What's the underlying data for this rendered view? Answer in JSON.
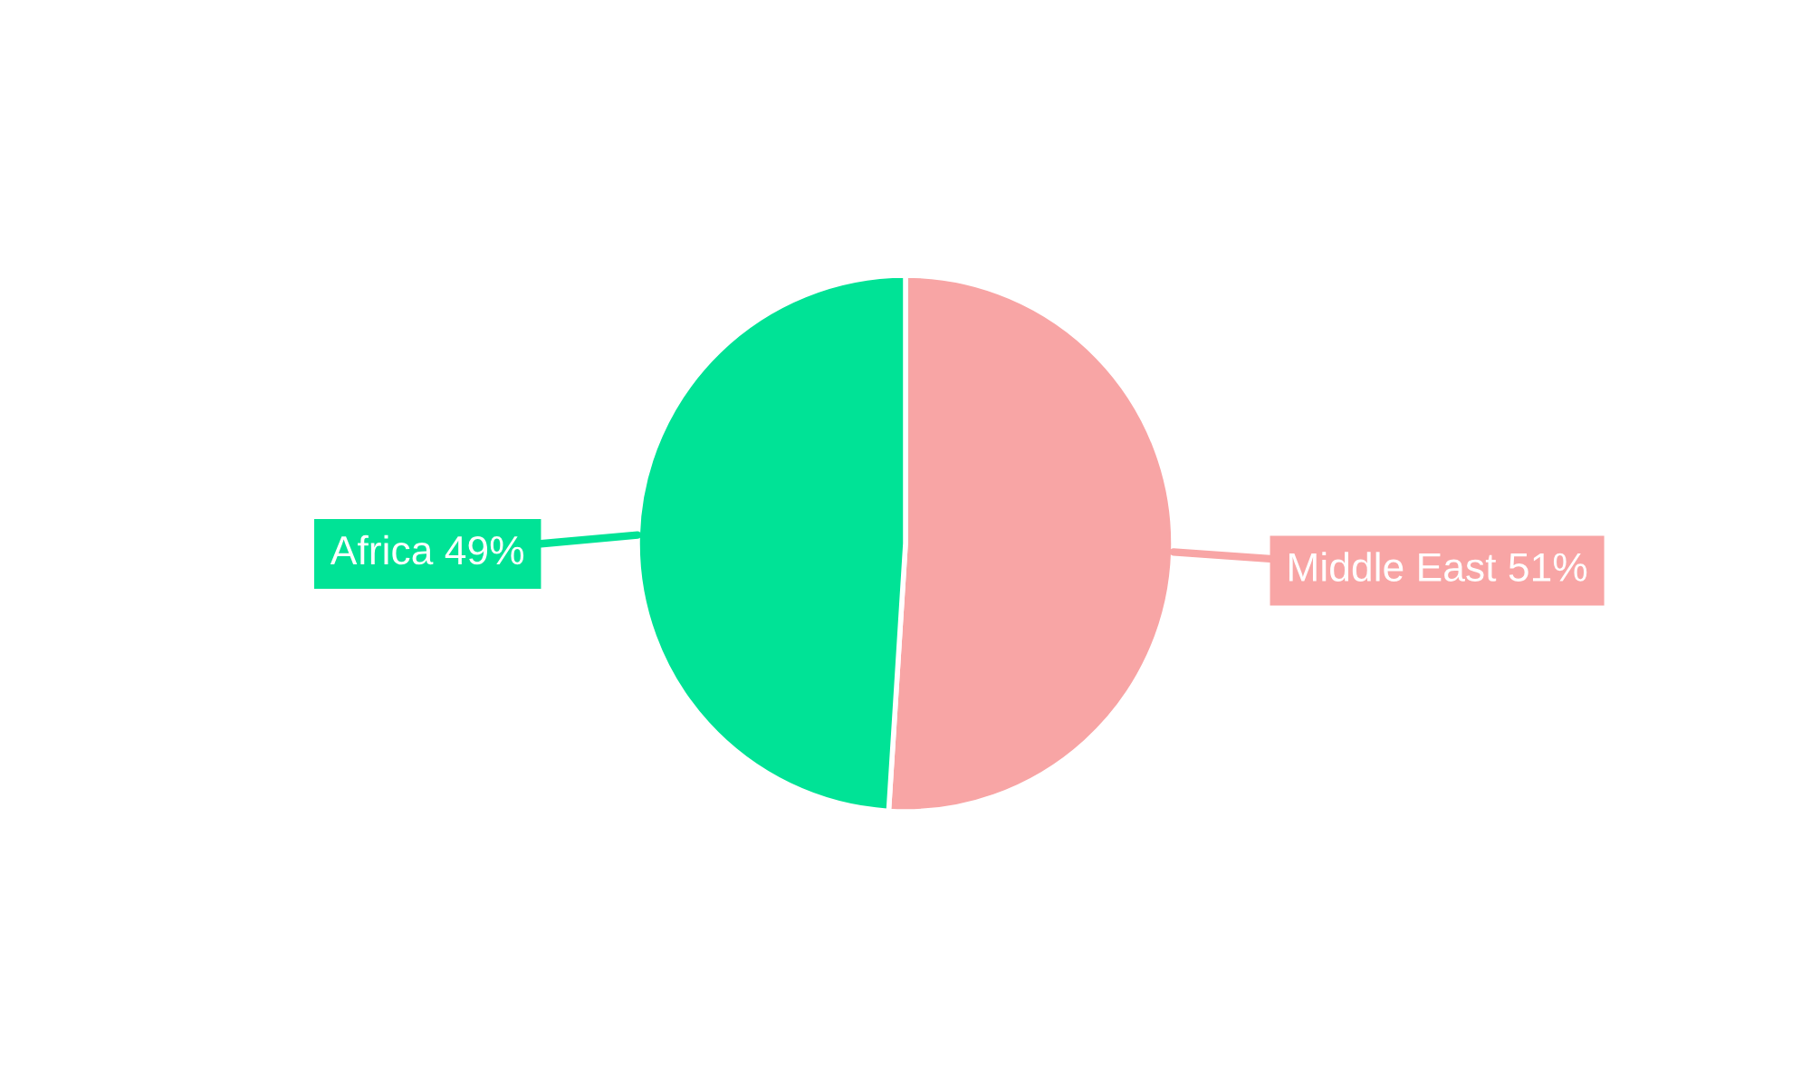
{
  "chart_data": {
    "type": "pie",
    "categories": [
      "Middle East",
      "Africa"
    ],
    "values": [
      51,
      49
    ],
    "value_labels": [
      "51%",
      "49%"
    ],
    "colors": [
      "#f8a5a5",
      "#00e396"
    ],
    "legend": false
  }
}
